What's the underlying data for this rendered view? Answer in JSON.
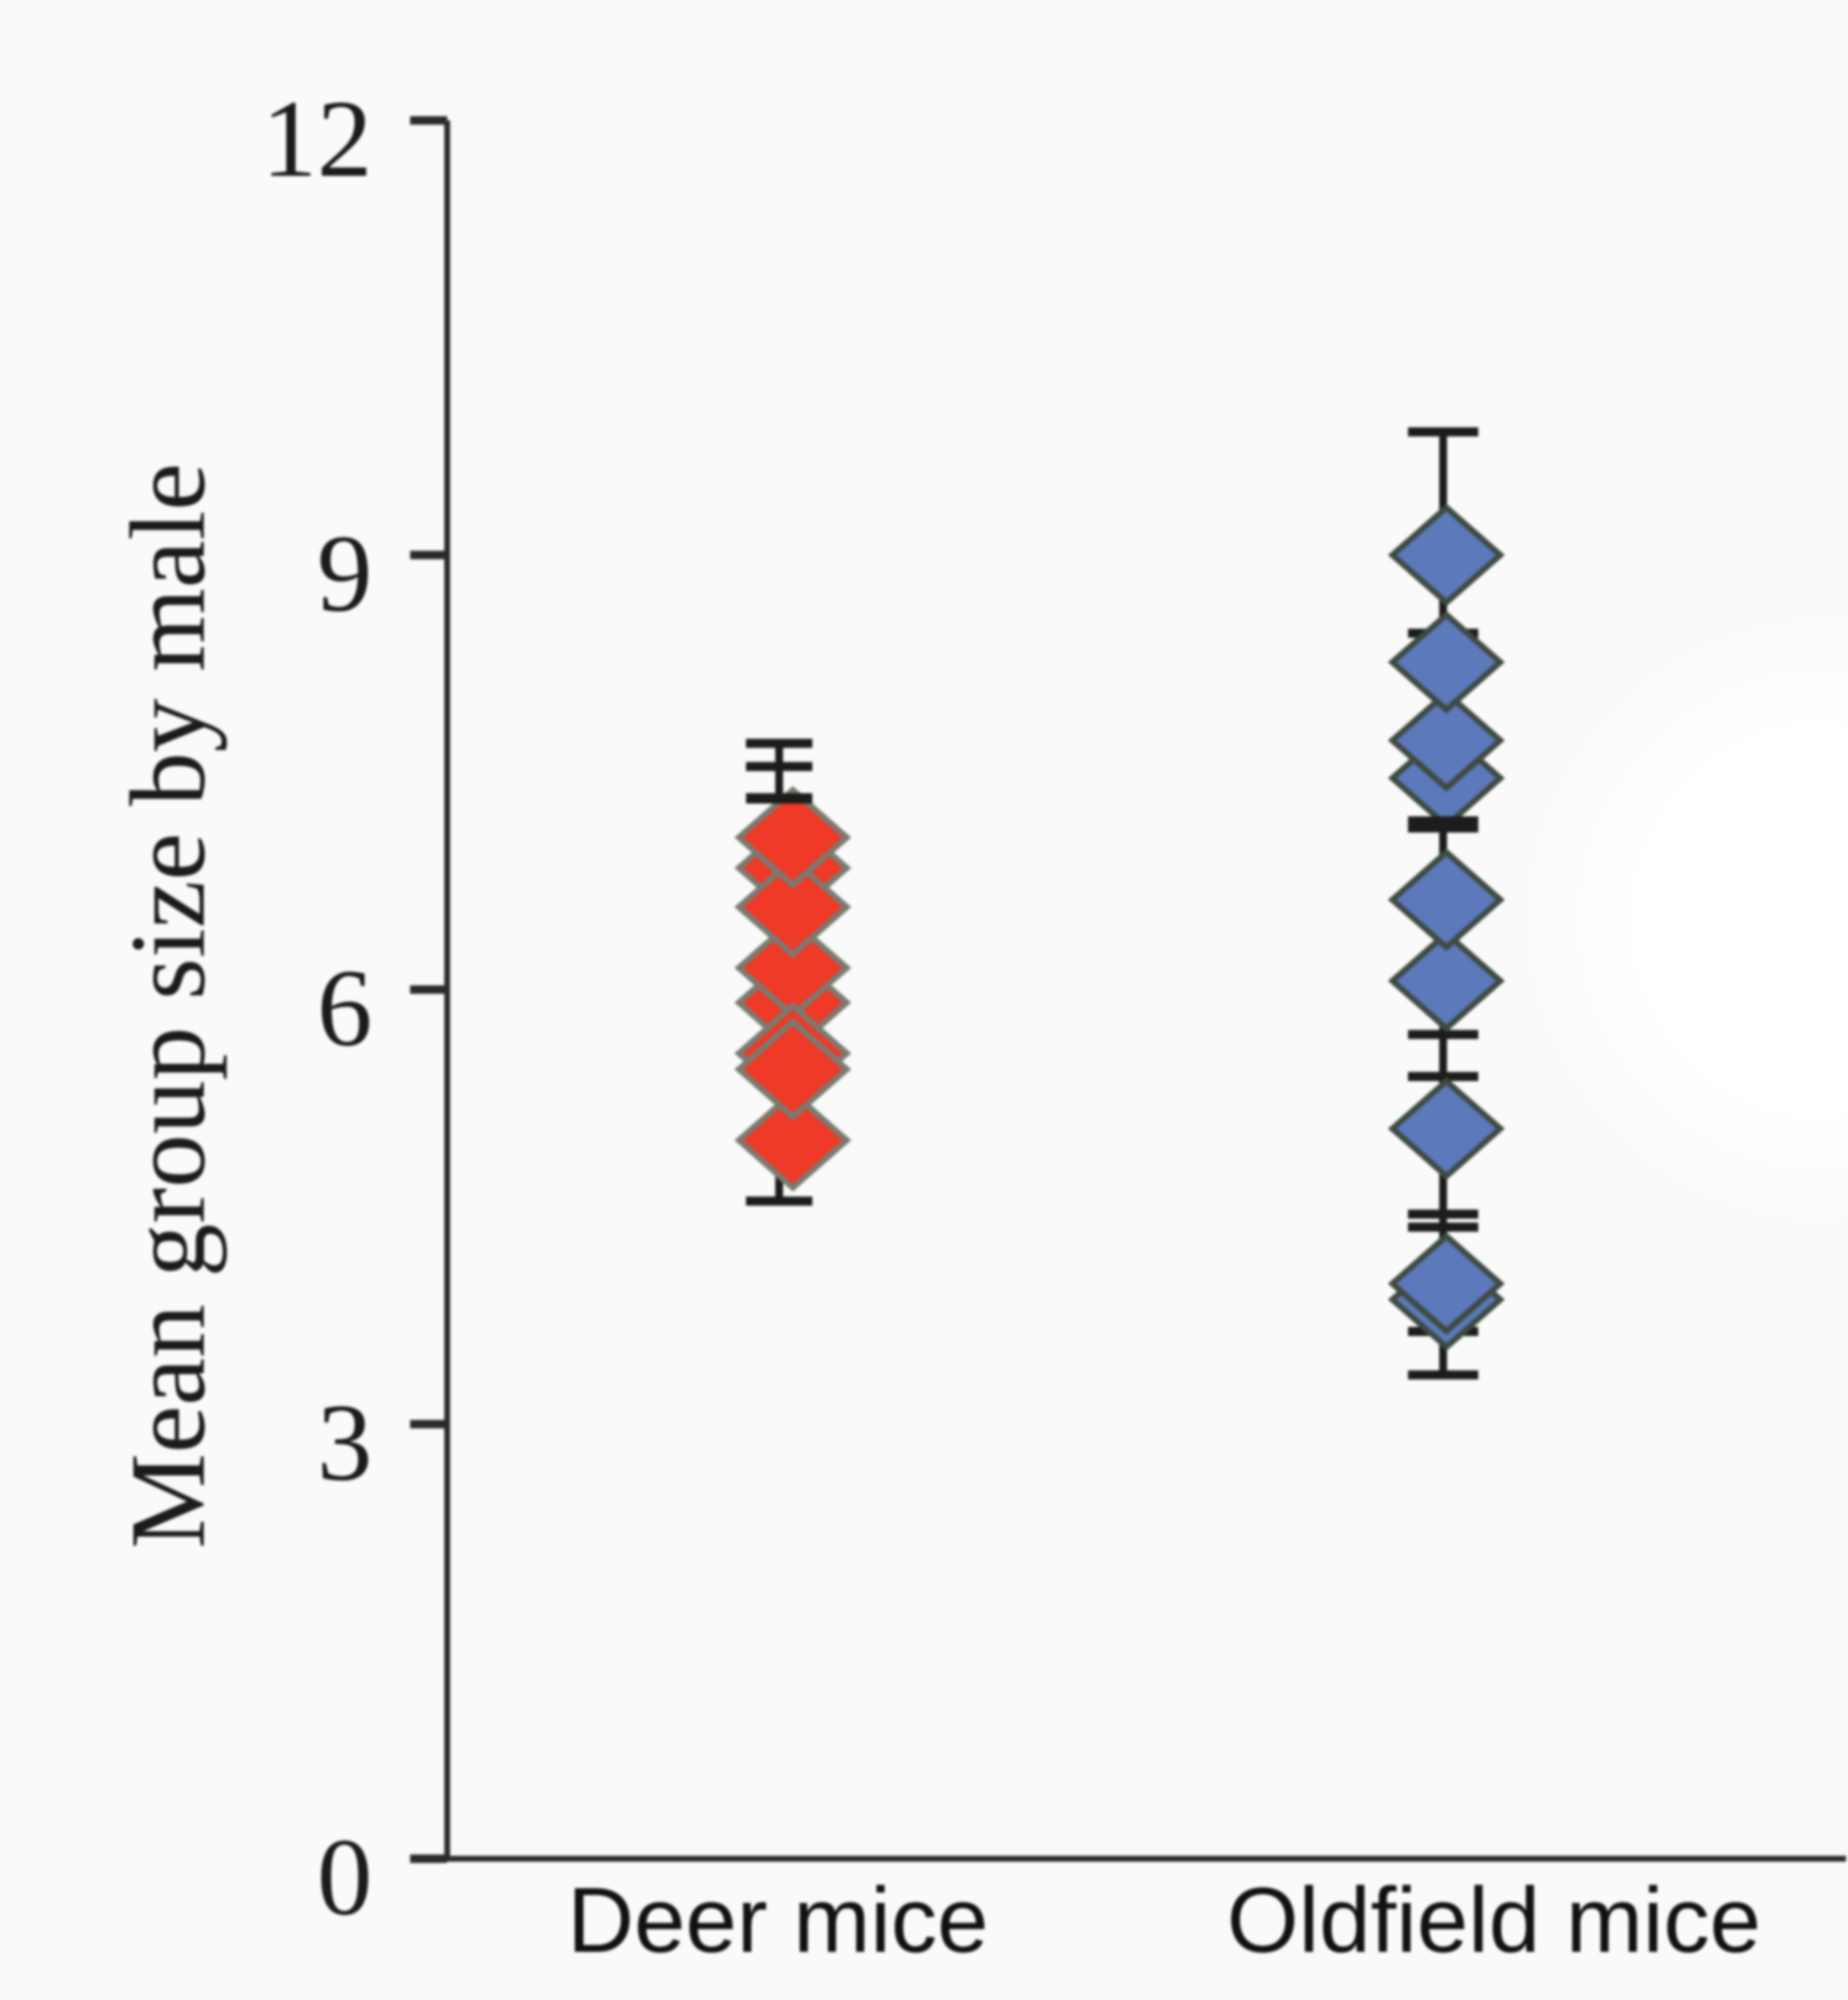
{
  "figure": {
    "background": "#fafafa",
    "text_color": "#1b1b1b"
  },
  "chart_data": {
    "type": "scatter",
    "title": "",
    "xlabel": "",
    "ylabel": "Mean group size by male",
    "categories": [
      "Deer mice",
      "Oldfield mice"
    ],
    "ylim": [
      0,
      12
    ],
    "yticks": [
      0,
      3,
      6,
      9,
      12
    ],
    "grid": false,
    "legend": "none",
    "marker": "diamond",
    "axis_color": "#2a2a2a",
    "error_bar_color": "#1c1c1c",
    "series": [
      {
        "name": "Deer mice",
        "marker_fill": "#ee3a27",
        "marker_stroke": "#7a7a71",
        "values": [
          6.84,
          5.91,
          6.15,
          6.57,
          7.05,
          4.96,
          5.56,
          5.45
        ],
        "error_caps": [
          7.7,
          7.54,
          4.54
        ],
        "error_caps_front": [
          7.32
        ],
        "whisker_range": [
          4.54,
          7.7
        ]
      },
      {
        "name": "Oldfield mice",
        "marker_fill": "#5b79bb",
        "marker_stroke": "#3e4a42",
        "values": [
          7.46,
          7.72,
          8.26,
          9.0,
          6.06,
          6.62,
          5.04,
          3.86,
          3.97
        ],
        "error_caps": [
          9.85,
          8.46,
          5.69,
          5.4,
          4.45,
          4.36,
          3.64,
          3.34
        ],
        "error_caps_front": [
          7.16,
          7.12
        ],
        "whisker_range": [
          3.34,
          9.85
        ]
      }
    ]
  }
}
